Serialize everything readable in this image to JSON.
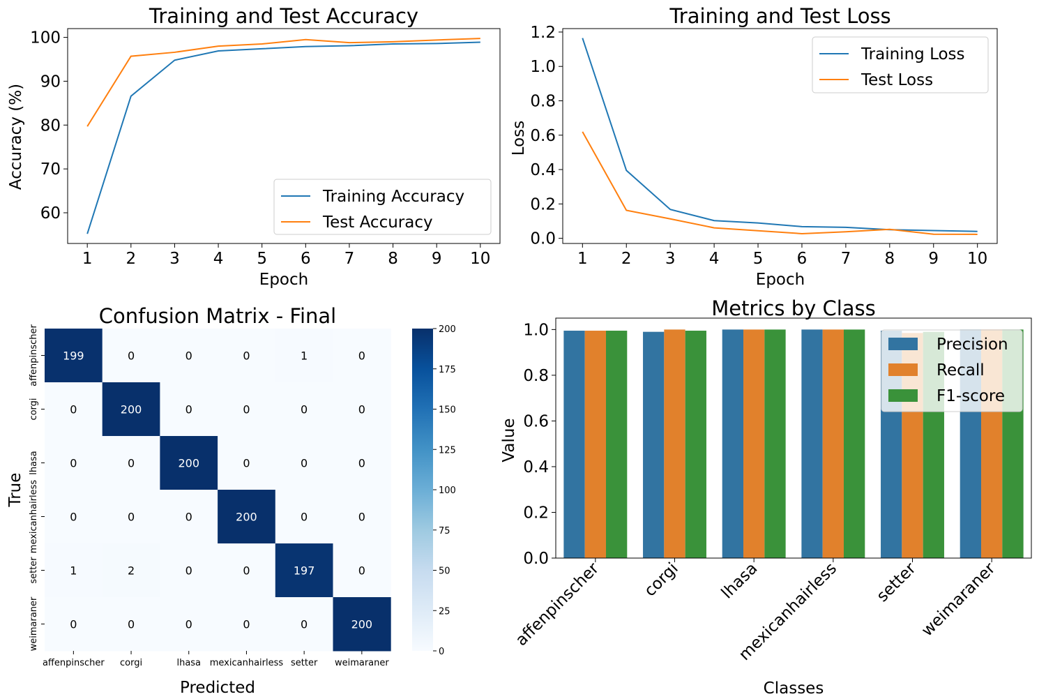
{
  "colors": {
    "training": "#1f77b4",
    "test": "#ff7f0e",
    "precision": "#3274a1",
    "recall": "#e1812c",
    "f1": "#3a923a",
    "heat_low": "#f7fbff",
    "heat_high": "#08306b"
  },
  "chart_data": [
    {
      "type": "line",
      "title": "Training and Test Accuracy",
      "xlabel": "Epoch",
      "ylabel": "Accuracy (%)",
      "x": [
        1,
        2,
        3,
        4,
        5,
        6,
        7,
        8,
        9,
        10
      ],
      "xticks": [
        "1",
        "2",
        "3",
        "4",
        "5",
        "6",
        "7",
        "8",
        "9",
        "10"
      ],
      "yticks": [
        "60",
        "70",
        "80",
        "90",
        "100"
      ],
      "ylim": [
        53,
        102
      ],
      "grid": false,
      "legend_position": "lower-right",
      "series": [
        {
          "name": "Training Accuracy",
          "color": "#1f77b4",
          "values": [
            55.2,
            86.6,
            94.8,
            96.9,
            97.4,
            97.9,
            98.1,
            98.5,
            98.6,
            98.9
          ]
        },
        {
          "name": "Test Accuracy",
          "color": "#ff7f0e",
          "values": [
            79.7,
            95.7,
            96.6,
            98.0,
            98.5,
            99.5,
            98.8,
            99.0,
            99.4,
            99.75
          ]
        }
      ]
    },
    {
      "type": "line",
      "title": "Training and Test Loss",
      "xlabel": "Epoch",
      "ylabel": "Loss",
      "x": [
        1,
        2,
        3,
        4,
        5,
        6,
        7,
        8,
        9,
        10
      ],
      "xticks": [
        "1",
        "2",
        "3",
        "4",
        "5",
        "6",
        "7",
        "8",
        "9",
        "10"
      ],
      "yticks": [
        "0.0",
        "0.2",
        "0.4",
        "0.6",
        "0.8",
        "1.0",
        "1.2"
      ],
      "ylim": [
        -0.03,
        1.22
      ],
      "grid": false,
      "legend_position": "upper-right",
      "series": [
        {
          "name": "Training Loss",
          "color": "#1f77b4",
          "values": [
            1.165,
            0.395,
            0.168,
            0.103,
            0.089,
            0.068,
            0.064,
            0.05,
            0.045,
            0.04
          ]
        },
        {
          "name": "Test Loss",
          "color": "#ff7f0e",
          "values": [
            0.62,
            0.163,
            0.113,
            0.061,
            0.044,
            0.027,
            0.038,
            0.052,
            0.024,
            0.023
          ]
        }
      ]
    },
    {
      "type": "heatmap",
      "title": "Confusion Matrix - Final",
      "xlabel": "Predicted",
      "ylabel": "True",
      "x_categories": [
        "affenpinscher",
        "corgi",
        "lhasa",
        "mexicanhairless",
        "setter",
        "weimaraner"
      ],
      "y_categories": [
        "affenpinscher",
        "corgi",
        "lhasa",
        "mexicanhairless",
        "setter",
        "weimaraner"
      ],
      "values": [
        [
          199,
          0,
          0,
          0,
          1,
          0
        ],
        [
          0,
          200,
          0,
          0,
          0,
          0
        ],
        [
          0,
          0,
          200,
          0,
          0,
          0
        ],
        [
          0,
          0,
          0,
          200,
          0,
          0
        ],
        [
          1,
          2,
          0,
          0,
          197,
          0
        ],
        [
          0,
          0,
          0,
          0,
          0,
          200
        ]
      ],
      "colorbar": {
        "min": 0,
        "max": 200,
        "ticks": [
          "0",
          "25",
          "50",
          "75",
          "100",
          "125",
          "150",
          "175",
          "200"
        ]
      }
    },
    {
      "type": "bar",
      "title": "Metrics by Class",
      "xlabel": "Classes",
      "ylabel": "Value",
      "categories": [
        "affenpinscher",
        "corgi",
        "lhasa",
        "mexicanhairless",
        "setter",
        "weimaraner"
      ],
      "yticks": [
        "0.0",
        "0.2",
        "0.4",
        "0.6",
        "0.8",
        "1.0"
      ],
      "ylim": [
        0,
        1.05
      ],
      "grid": false,
      "legend_position": "upper-right",
      "series": [
        {
          "name": "Precision",
          "color": "#3274a1",
          "values": [
            0.995,
            0.99,
            1.0,
            1.0,
            0.995,
            1.0
          ]
        },
        {
          "name": "Recall",
          "color": "#e1812c",
          "values": [
            0.995,
            1.0,
            1.0,
            1.0,
            0.985,
            1.0
          ]
        },
        {
          "name": "F1-score",
          "color": "#3a923a",
          "values": [
            0.995,
            0.995,
            1.0,
            1.0,
            0.99,
            1.0
          ]
        }
      ]
    }
  ]
}
